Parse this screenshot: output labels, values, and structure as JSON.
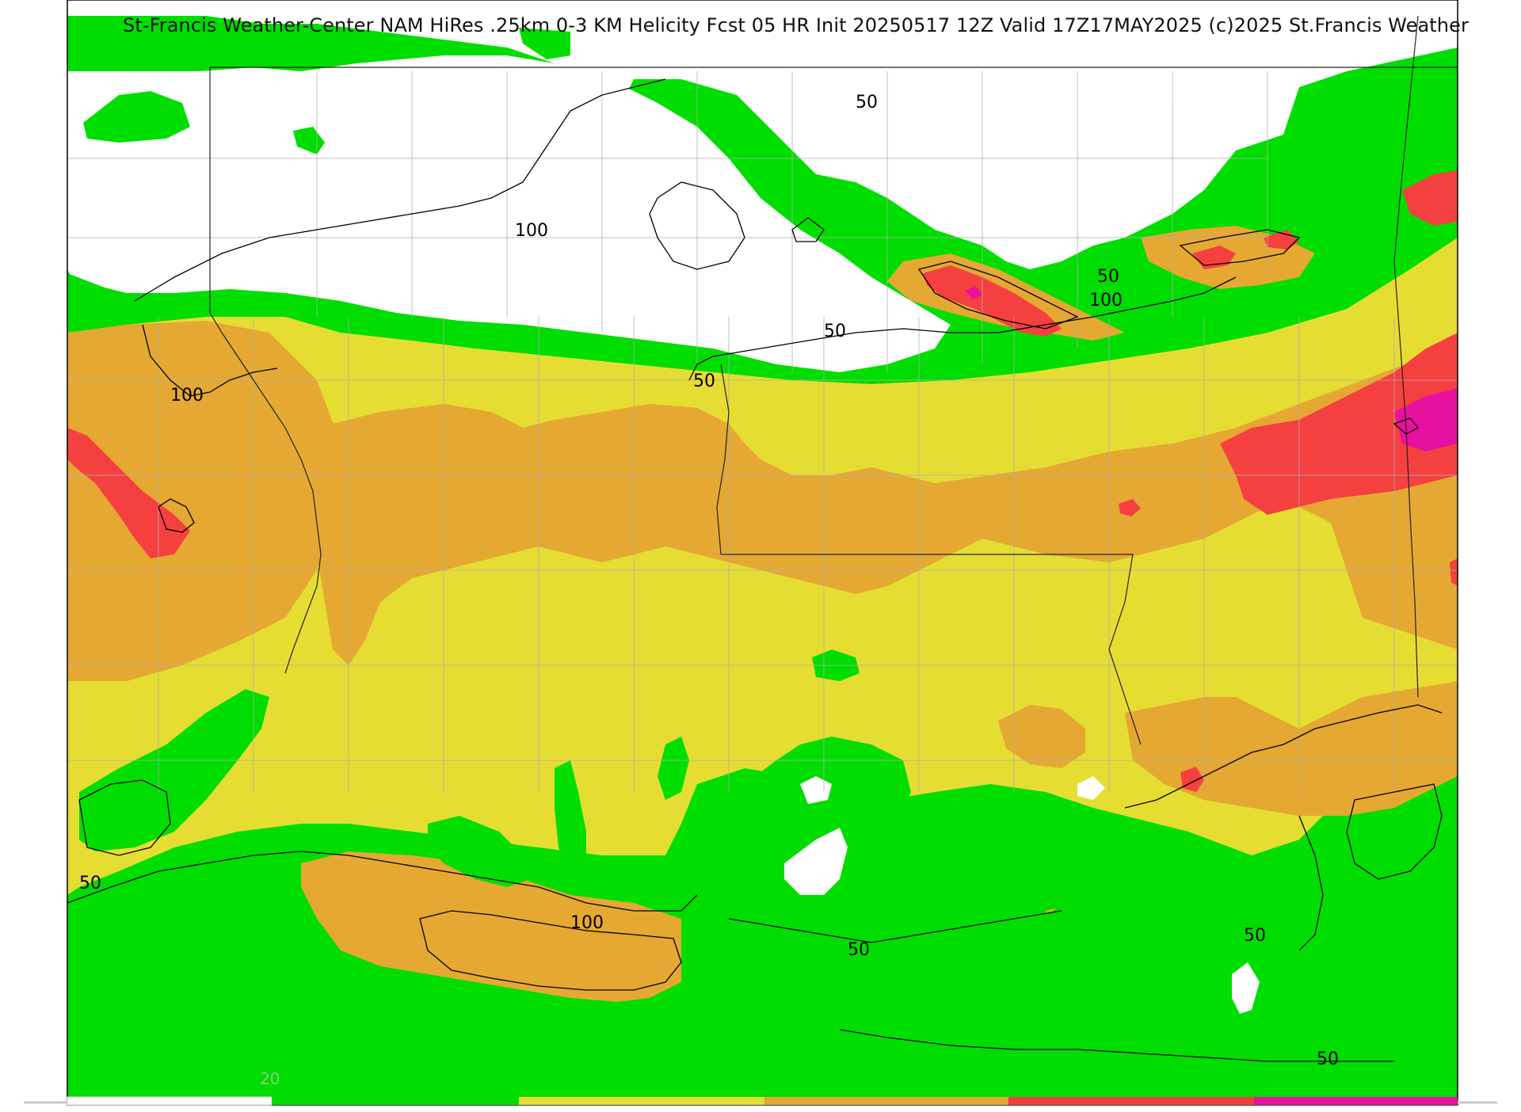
{
  "header": {
    "title": "St-Francis Weather-Center NAM HiRes .25km 0-3 KM Helicity Fcst 05 HR Init 20250517 12Z  Valid 17Z17MAY2025    (c)2025 St.Francis Weather"
  },
  "contour_labels": [
    {
      "id": "c50-n1",
      "text": "50"
    },
    {
      "id": "c100-n1",
      "text": "100"
    },
    {
      "id": "c100-w",
      "text": "100"
    },
    {
      "id": "c50-center",
      "text": "50"
    },
    {
      "id": "c50-n2",
      "text": "50"
    },
    {
      "id": "c50-ne",
      "text": "50"
    },
    {
      "id": "c100-ne",
      "text": "100"
    },
    {
      "id": "c50-sw",
      "text": "50"
    },
    {
      "id": "c100-s",
      "text": "100"
    },
    {
      "id": "c50-s",
      "text": "50"
    },
    {
      "id": "c50-se",
      "text": "50"
    },
    {
      "id": "c50-se2",
      "text": "50"
    }
  ],
  "color_scale": {
    "label": "20",
    "bins": [
      {
        "color": "#ffffff"
      },
      {
        "color": "#00dd00"
      },
      {
        "color": "#e6dd32"
      },
      {
        "color": "#e5a832"
      },
      {
        "color": "#f54040"
      },
      {
        "color": "#e8109e"
      }
    ]
  },
  "colors": {
    "white_band": "#ffffff",
    "green_band": "#00dd00",
    "yellow_band": "#e6dd32",
    "orange_band": "#e5a832",
    "red_band": "#f54040",
    "magenta_band": "#e8109e",
    "contour": "#000000",
    "county_lines": "#b0b0b0"
  }
}
